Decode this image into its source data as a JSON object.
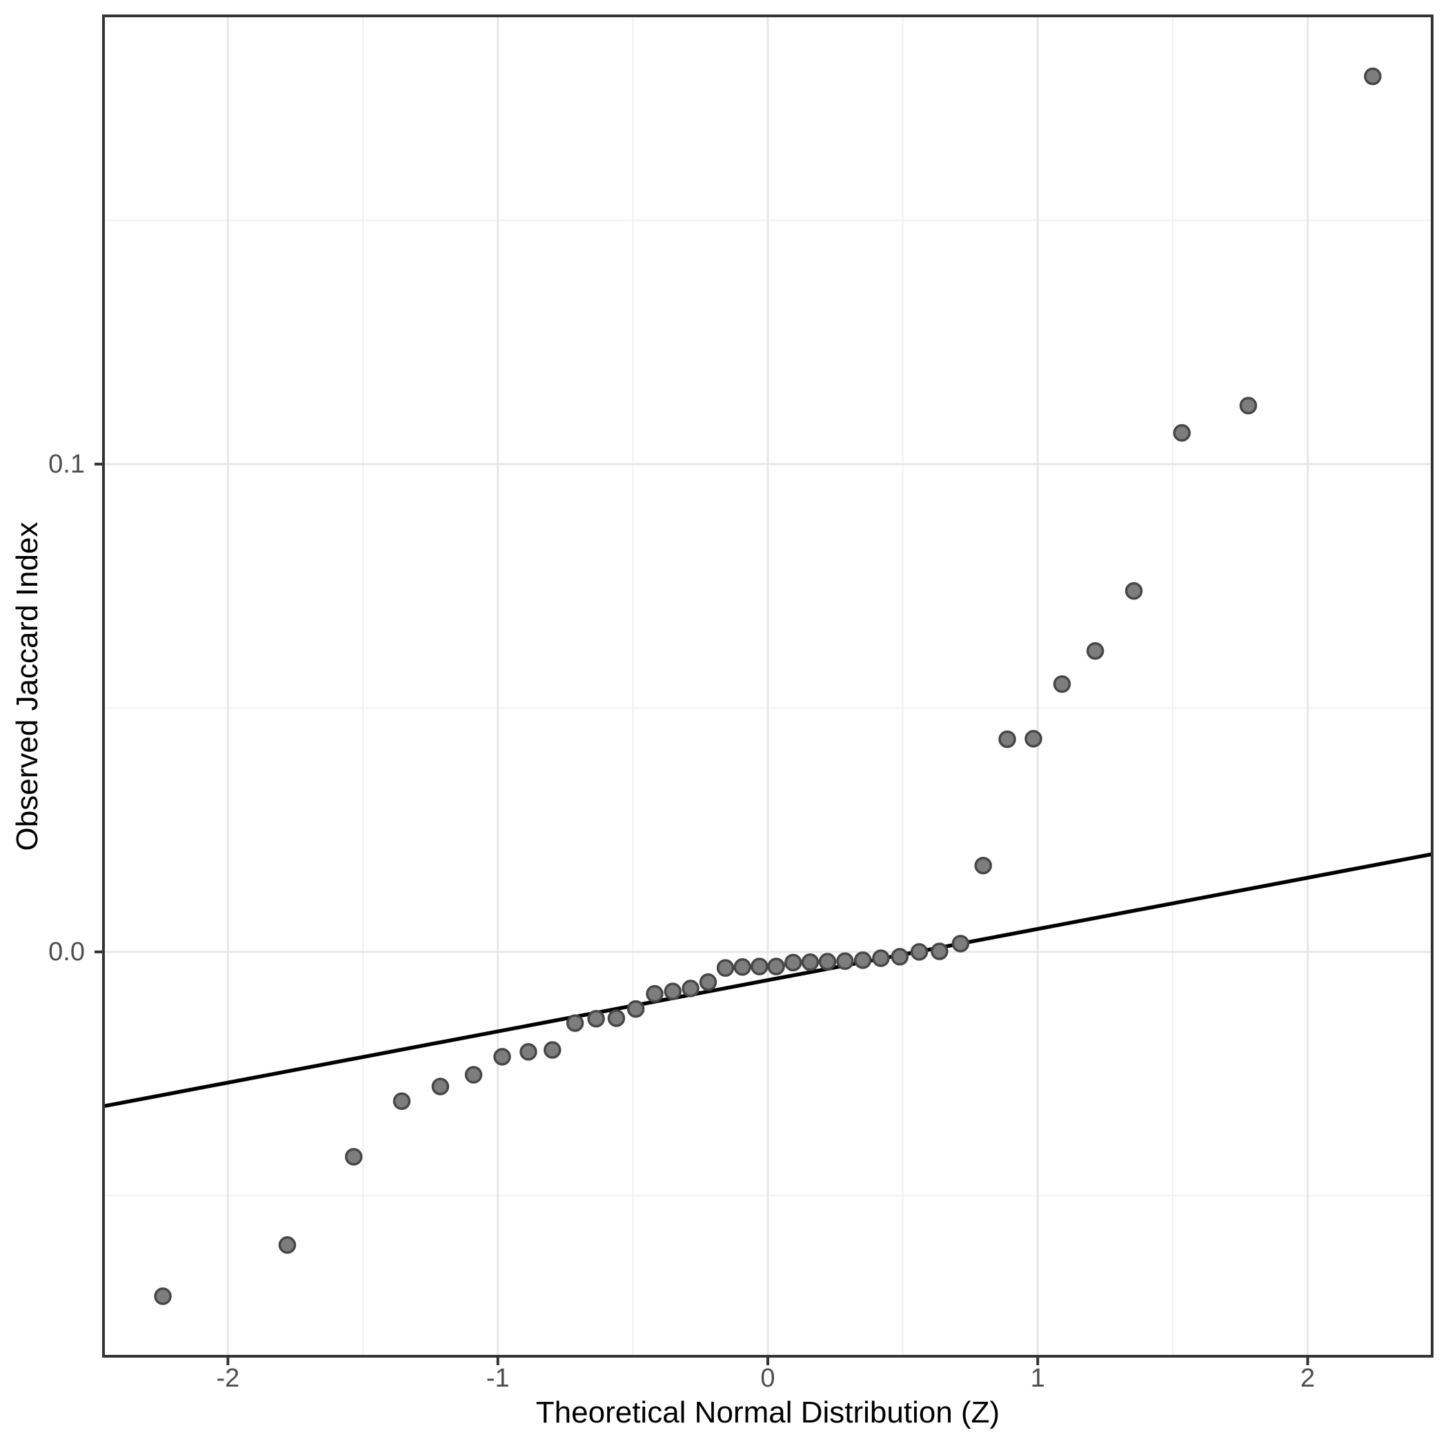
{
  "figure": {
    "x_axis_title": "Theoretical Normal Distribution (Z)",
    "y_axis_title": "Observed Jaccard Index"
  },
  "chart_data": {
    "type": "scatter",
    "title": "",
    "xlabel": "Theoretical Normal Distribution (Z)",
    "ylabel": "Observed Jaccard Index",
    "xlim": [
      -2.461,
      2.461
    ],
    "ylim": [
      -0.0829,
      0.1919
    ],
    "x_ticks": [
      -2,
      -1,
      0,
      1,
      2
    ],
    "x_tick_labels": [
      "-2",
      "-1",
      "0",
      "1",
      "2"
    ],
    "x_minor_breaks": [
      -1.5,
      -0.5,
      0.5,
      1.5
    ],
    "y_ticks": [
      0.0,
      0.1
    ],
    "y_tick_labels": [
      "0.0",
      "0.1"
    ],
    "y_minor_breaks": [
      -0.05,
      0.05,
      0.15
    ],
    "grid": "major-and-minor",
    "legend_position": "none",
    "series": [
      {
        "name": "qq-points",
        "points": [
          [
            -2.241,
            -0.0706
          ],
          [
            -1.78,
            -0.0601
          ],
          [
            -1.534,
            -0.042
          ],
          [
            -1.356,
            -0.0306
          ],
          [
            -1.213,
            -0.0276
          ],
          [
            -1.09,
            -0.0252
          ],
          [
            -0.984,
            -0.0215
          ],
          [
            -0.887,
            -0.0205
          ],
          [
            -0.798,
            -0.0201
          ],
          [
            -0.714,
            -0.0146
          ],
          [
            -0.636,
            -0.0137
          ],
          [
            -0.561,
            -0.0136
          ],
          [
            -0.489,
            -0.0117
          ],
          [
            -0.419,
            -0.0086
          ],
          [
            -0.352,
            -0.0081
          ],
          [
            -0.286,
            -0.0075
          ],
          [
            -0.221,
            -0.0062
          ],
          [
            -0.157,
            -0.0033
          ],
          [
            -0.094,
            -0.0031
          ],
          [
            -0.031,
            -0.003
          ],
          [
            0.031,
            -0.003
          ],
          [
            0.094,
            -0.0022
          ],
          [
            0.157,
            -0.0021
          ],
          [
            0.221,
            -0.002
          ],
          [
            0.286,
            -0.0019
          ],
          [
            0.352,
            -0.0017
          ],
          [
            0.419,
            -0.0013
          ],
          [
            0.489,
            -0.001
          ],
          [
            0.561,
            0.0
          ],
          [
            0.636,
            0.0001
          ],
          [
            0.714,
            0.0017
          ],
          [
            0.798,
            0.0177
          ],
          [
            0.887,
            0.0436
          ],
          [
            0.984,
            0.0437
          ],
          [
            1.09,
            0.0549
          ],
          [
            1.213,
            0.0617
          ],
          [
            1.356,
            0.074
          ],
          [
            1.534,
            0.1064
          ],
          [
            1.78,
            0.112
          ],
          [
            2.241,
            0.1795
          ]
        ]
      }
    ],
    "reference_line": {
      "slope": 0.0105,
      "intercept": -0.0058
    },
    "colors": {
      "point_fill": "#7d7d7d",
      "point_stroke": "#474747",
      "reference_line": "#000000",
      "grid_major": "#e7e7e7",
      "grid_minor": "#f1f1f1",
      "panel_border": "#333333",
      "tick_mark": "#333333",
      "tick_label": "#4d4d4d",
      "axis_title": "#000000",
      "panel_background": "#ffffff"
    }
  }
}
